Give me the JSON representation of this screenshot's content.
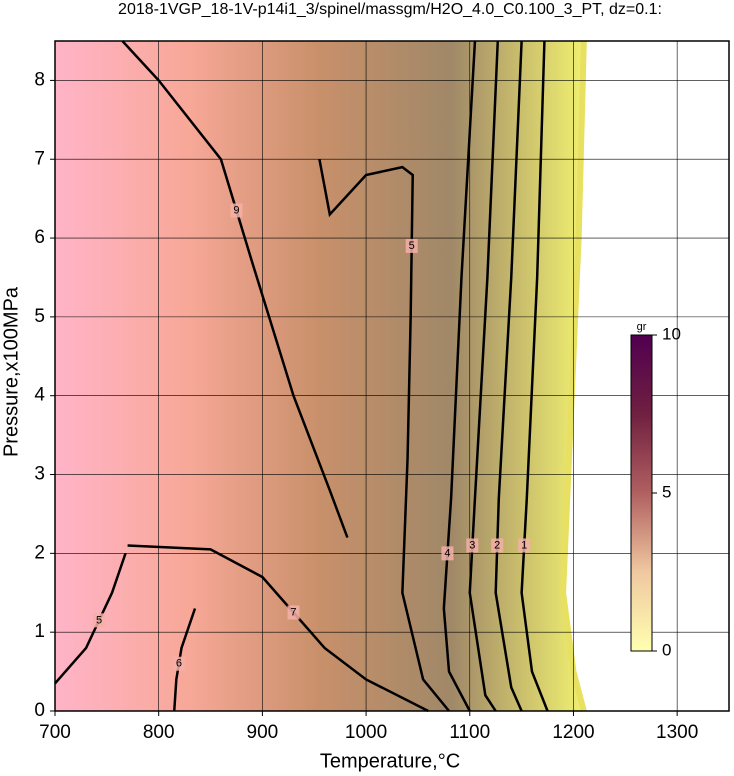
{
  "chart_data": {
    "type": "contour",
    "title": "2018-1VGP_18-1V-p14i1_3/spinel/massgm/H2O_4.0_C0.100_3_PT, dz=0.1:",
    "x_label": "Temperature,°C",
    "y_label": "Pressure,x100MPa",
    "xlim": [
      700,
      1350
    ],
    "ylim": [
      0,
      8.5
    ],
    "xticks": [
      700,
      800,
      900,
      1000,
      1100,
      1200,
      1300
    ],
    "yticks": [
      0,
      1,
      2,
      3,
      4,
      5,
      6,
      7,
      8
    ],
    "grid": true,
    "boundary": {
      "x": [
        1210,
        1205,
        1195,
        1190,
        1200,
        1210
      ],
      "y": [
        8.5,
        6,
        3,
        1.5,
        0.5,
        0
      ]
    },
    "contours": [
      {
        "level": 1,
        "x": [
          1172,
          1165,
          1155,
          1150,
          1160,
          1175
        ],
        "y": [
          8.5,
          5.5,
          2.7,
          1.5,
          0.5,
          0
        ]
      },
      {
        "level": 2,
        "x": [
          1150,
          1140,
          1128,
          1125,
          1140,
          1150
        ],
        "y": [
          8.5,
          5.5,
          2.7,
          1.5,
          0.3,
          0
        ]
      },
      {
        "level": 3,
        "x": [
          1127,
          1117,
          1105,
          1100,
          1115,
          1125
        ],
        "y": [
          8.5,
          5.5,
          2.7,
          1.5,
          0.2,
          0
        ]
      },
      {
        "level": 4,
        "x": [
          1105,
          1092,
          1082,
          1075,
          1080,
          1100
        ],
        "y": [
          8.5,
          5.5,
          2.7,
          1.3,
          0.5,
          0
        ]
      },
      {
        "level": 5,
        "x": [
          955,
          965,
          1000,
          1035,
          1045,
          1043,
          1040,
          1035,
          1055,
          1080
        ],
        "y": [
          7.0,
          6.3,
          6.8,
          6.9,
          6.8,
          5,
          3.2,
          1.5,
          0.4,
          0
        ]
      },
      {
        "level": 9,
        "x": [
          765,
          800,
          860,
          890,
          930,
          965,
          982
        ],
        "y": [
          8.5,
          8.0,
          7.0,
          5.7,
          4.0,
          2.8,
          2.2
        ]
      },
      {
        "level": 7,
        "x": [
          770,
          850,
          900,
          960,
          1000,
          1060
        ],
        "y": [
          2.1,
          2.05,
          1.7,
          0.8,
          0.4,
          0
        ]
      },
      {
        "level": 6,
        "x": [
          835,
          822,
          817,
          815
        ],
        "y": [
          1.3,
          0.8,
          0.4,
          0
        ]
      },
      {
        "level": 5,
        "x": [
          700,
          730,
          755,
          768
        ],
        "y": [
          0.35,
          0.8,
          1.5,
          2.0
        ]
      }
    ],
    "colorbar": {
      "label": "gr",
      "lim": [
        0,
        10
      ],
      "ticks": [
        0,
        5,
        10
      ],
      "colors": [
        "#ffffb0",
        "#f0c8a0",
        "#b06060",
        "#702040",
        "#500050"
      ]
    },
    "fill_colors": [
      "#ffb4c8",
      "#f8a898",
      "#c8906a",
      "#a08868",
      "#f0f070"
    ]
  }
}
